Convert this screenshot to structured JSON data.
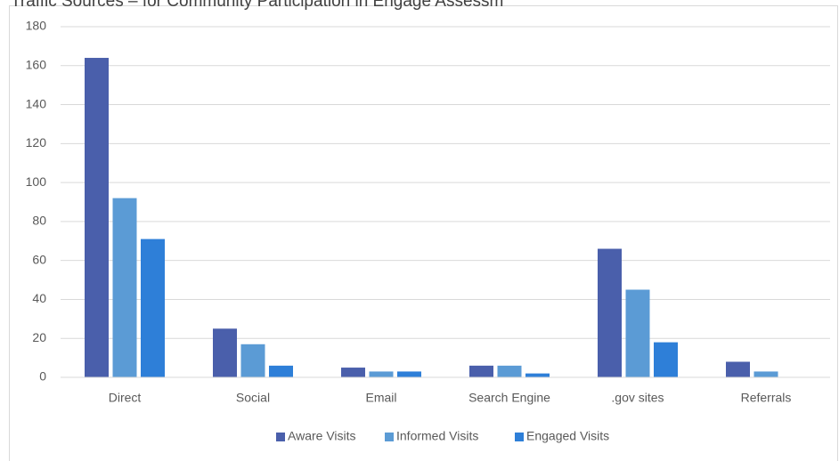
{
  "chart_data": {
    "type": "bar",
    "title": "Traffic Sources – for Community Participation in Engage Assessm",
    "categories": [
      "Direct",
      "Social",
      "Email",
      "Search Engine",
      ".gov sites",
      "Referrals"
    ],
    "series": [
      {
        "name": "Aware Visits",
        "color": "#4a5fab",
        "values": [
          164,
          25,
          5,
          6,
          66,
          8
        ]
      },
      {
        "name": "Informed Visits",
        "color": "#5b9bd5",
        "values": [
          92,
          17,
          3,
          6,
          45,
          3
        ]
      },
      {
        "name": "Engaged Visits",
        "color": "#2e7fd8",
        "values": [
          71,
          6,
          3,
          2,
          18,
          0
        ]
      }
    ],
    "ylim": [
      0,
      180
    ],
    "yticks": [
      0,
      20,
      40,
      60,
      80,
      100,
      120,
      140,
      160,
      180
    ],
    "grid": true,
    "legend": "bottom"
  }
}
